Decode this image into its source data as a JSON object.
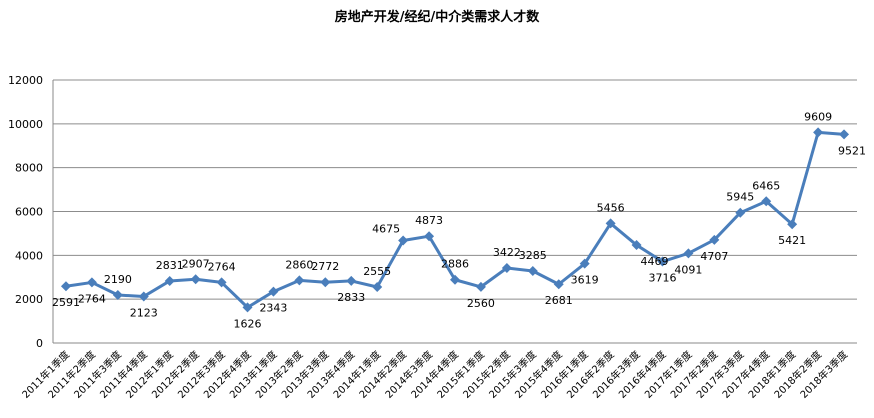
{
  "chart_data": {
    "type": "line",
    "title": "房地产开发/经纪/中介类需求人才数",
    "xlabel": "",
    "ylabel": "",
    "ylim": [
      0,
      12000
    ],
    "yticks": [
      "0",
      "2000",
      "4000",
      "6000",
      "8000",
      "10000",
      "12000"
    ],
    "grid": true,
    "legend": "none",
    "color": "#4a7ebb",
    "marker": "diamond",
    "categories": [
      "2011年1季度",
      "2011年2季度",
      "2011年3季度",
      "2011年4季度",
      "2012年1季度",
      "2012年2季度",
      "2012年3季度",
      "2012年4季度",
      "2013年1季度",
      "2013年2季度",
      "2013年3季度",
      "2013年4季度",
      "2014年1季度",
      "2014年2季度",
      "2014年3季度",
      "2014年4季度",
      "2015年1季度",
      "2015年2季度",
      "2015年3季度",
      "2015年4季度",
      "2016年1季度",
      "2016年2季度",
      "2016年3季度",
      "2016年4季度",
      "2017年1季度",
      "2017年2季度",
      "2017年3季度",
      "2017年4季度",
      "2018年1季度",
      "2018年2季度",
      "2018年3季度"
    ],
    "values": [
      2591,
      2764,
      2190,
      2123,
      2831,
      2907,
      2764,
      1626,
      2343,
      2860,
      2772,
      2833,
      2555,
      4675,
      4873,
      2886,
      2560,
      3422,
      3285,
      2681,
      3619,
      5456,
      4469,
      3716,
      4091,
      4707,
      5945,
      6465,
      5421,
      9609,
      9521
    ]
  }
}
